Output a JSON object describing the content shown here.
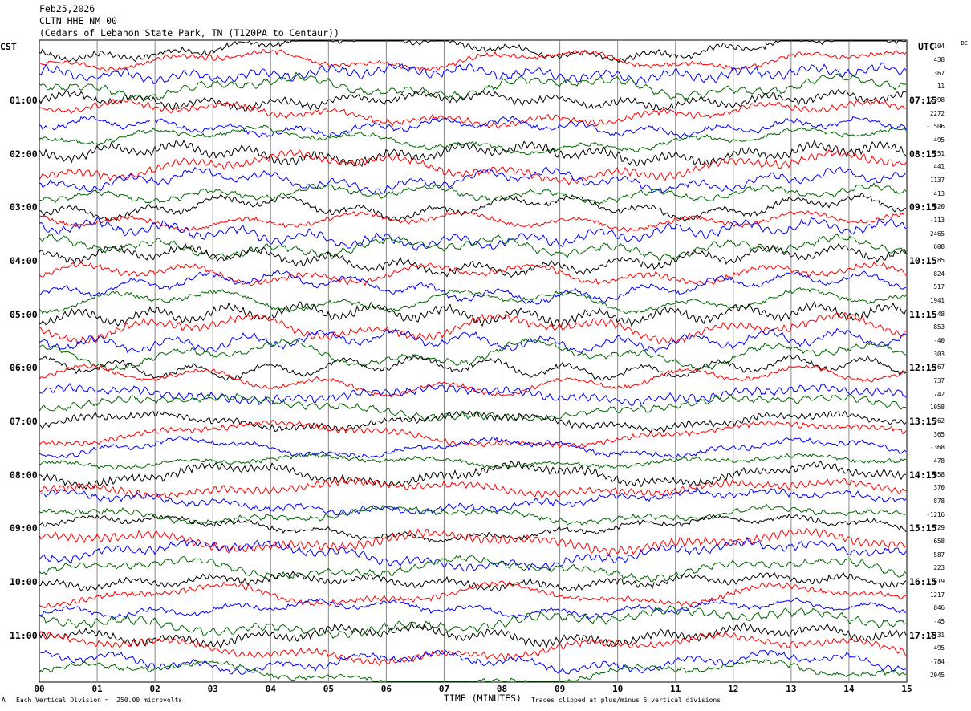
{
  "header": {
    "date": "Feb25,2026",
    "station": "CLTN HHE NM 00",
    "location": "(Cedars of Lebanon State Park, TN (T120PA to Centaur))"
  },
  "axes": {
    "left_tz": "CST",
    "right_tz": "UTC",
    "dc_header": "DC",
    "xlabel": "TIME (MINUTES)"
  },
  "footer": {
    "scale_note": "Each Vertical Division =  250.00 microvolts",
    "clip_note": "Traces clipped at plus/minus 5 vertical divisions",
    "corner_mark": "A"
  },
  "colors": {
    "black": "#000000",
    "red": "#ff0000",
    "blue": "#0000ff",
    "green": "#006600",
    "grid": "#888888"
  },
  "chart_data": {
    "type": "line",
    "title": "",
    "xlabel": "TIME (MINUTES)",
    "ylabel": "",
    "x_ticks": [
      "00",
      "01",
      "02",
      "03",
      "04",
      "05",
      "06",
      "07",
      "08",
      "09",
      "10",
      "11",
      "12",
      "13",
      "14",
      "15"
    ],
    "xlim": [
      0,
      15
    ],
    "grid": "vertical lines at each minute",
    "left_time_labels": [
      "01:00",
      "02:00",
      "03:00",
      "04:00",
      "05:00",
      "06:00",
      "07:00",
      "08:00",
      "09:00",
      "10:00",
      "11:00"
    ],
    "right_time_labels": [
      "07:15",
      "08:15",
      "09:15",
      "10:15",
      "11:15",
      "12:15",
      "13:15",
      "14:15",
      "15:15",
      "16:15",
      "17:15"
    ],
    "trace_color_cycle": [
      "black",
      "red",
      "blue",
      "green"
    ],
    "dc_offsets": [
      104,
      438,
      367,
      11,
      2398,
      2272,
      -1506,
      -495,
      251,
      441,
      1137,
      413,
      820,
      -113,
      2465,
      608,
      -85,
      824,
      517,
      1941,
      -48,
      853,
      -40,
      303,
      -467,
      737,
      742,
      1058,
      362,
      365,
      -368,
      478,
      858,
      370,
      878,
      -1216,
      729,
      658,
      587,
      223,
      619,
      1217,
      846,
      -45,
      1431,
      495,
      -784,
      2045
    ]
  }
}
